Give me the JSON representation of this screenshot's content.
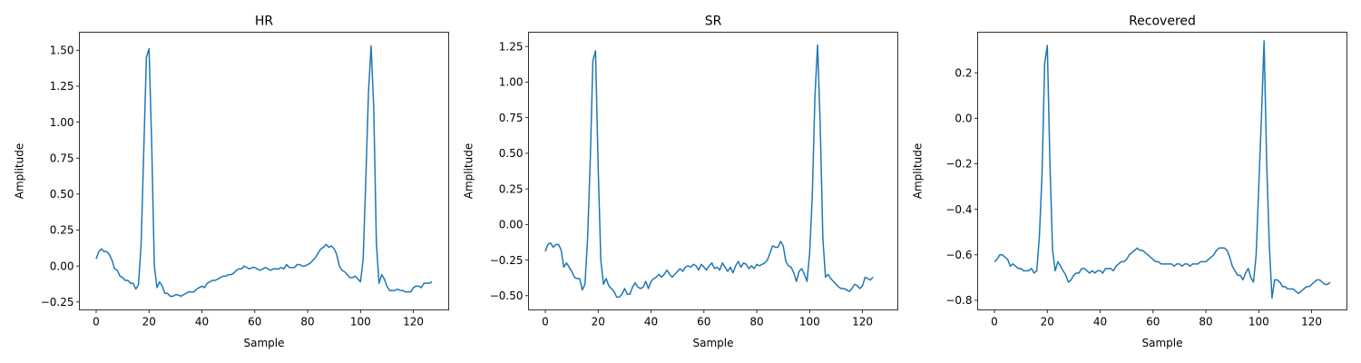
{
  "chart_data": [
    {
      "type": "line",
      "title": "HR",
      "xlabel": "Sample",
      "ylabel": "Amplitude",
      "xlim": [
        -6.35,
        133.35
      ],
      "ylim": [
        -0.305,
        1.625
      ],
      "xticks": [
        0,
        20,
        40,
        60,
        80,
        100,
        120
      ],
      "yticks": [
        -0.25,
        0.0,
        0.25,
        0.5,
        0.75,
        1.0,
        1.25,
        1.5
      ],
      "ytick_labels": [
        "−0.25",
        "0.00",
        "0.25",
        "0.50",
        "0.75",
        "1.00",
        "1.25",
        "1.50"
      ],
      "grid": false,
      "color": "#1f77b4",
      "series": [
        {
          "values": [
            0.05,
            0.1,
            0.12,
            0.1,
            0.1,
            0.08,
            0.04,
            -0.02,
            -0.03,
            -0.07,
            -0.08,
            -0.1,
            -0.1,
            -0.12,
            -0.12,
            -0.16,
            -0.13,
            0.15,
            0.8,
            1.45,
            1.51,
            0.85,
            0.0,
            -0.15,
            -0.11,
            -0.14,
            -0.19,
            -0.19,
            -0.21,
            -0.21,
            -0.2,
            -0.2,
            -0.21,
            -0.2,
            -0.19,
            -0.18,
            -0.18,
            -0.18,
            -0.16,
            -0.15,
            -0.14,
            -0.15,
            -0.12,
            -0.11,
            -0.1,
            -0.1,
            -0.09,
            -0.08,
            -0.07,
            -0.07,
            -0.06,
            -0.06,
            -0.05,
            -0.03,
            -0.02,
            -0.02,
            0.0,
            -0.01,
            -0.02,
            -0.01,
            -0.01,
            -0.02,
            -0.03,
            -0.02,
            -0.01,
            -0.02,
            -0.03,
            -0.02,
            -0.02,
            -0.02,
            -0.01,
            -0.02,
            0.01,
            -0.01,
            -0.01,
            -0.01,
            0.01,
            0.01,
            0.0,
            0.0,
            0.01,
            0.02,
            0.04,
            0.06,
            0.09,
            0.12,
            0.13,
            0.15,
            0.13,
            0.14,
            0.12,
            0.08,
            0.0,
            -0.03,
            -0.04,
            -0.06,
            -0.08,
            -0.08,
            -0.07,
            -0.09,
            -0.11,
            0.05,
            0.6,
            1.2,
            1.53,
            1.1,
            0.16,
            -0.12,
            -0.06,
            -0.09,
            -0.14,
            -0.17,
            -0.17,
            -0.17,
            -0.16,
            -0.17,
            -0.17,
            -0.18,
            -0.18,
            -0.18,
            -0.15,
            -0.14,
            -0.14,
            -0.15,
            -0.12,
            -0.12,
            -0.12,
            -0.11
          ]
        }
      ]
    },
    {
      "type": "line",
      "title": "SR",
      "xlabel": "Sample",
      "ylabel": "Amplitude",
      "xlim": [
        -6.35,
        133.35
      ],
      "ylim": [
        -0.6,
        1.35
      ],
      "xticks": [
        0,
        20,
        40,
        60,
        80,
        100,
        120
      ],
      "yticks": [
        -0.5,
        -0.25,
        0.0,
        0.25,
        0.5,
        0.75,
        1.0,
        1.25
      ],
      "ytick_labels": [
        "−0.50",
        "−0.25",
        "0.00",
        "0.25",
        "0.50",
        "0.75",
        "1.00",
        "1.25"
      ],
      "grid": false,
      "color": "#1f77b4",
      "series": [
        {
          "values": [
            -0.19,
            -0.14,
            -0.13,
            -0.16,
            -0.14,
            -0.14,
            -0.18,
            -0.3,
            -0.27,
            -0.3,
            -0.33,
            -0.37,
            -0.38,
            -0.38,
            -0.46,
            -0.42,
            -0.1,
            0.45,
            1.15,
            1.22,
            0.4,
            -0.25,
            -0.42,
            -0.38,
            -0.43,
            -0.45,
            -0.47,
            -0.51,
            -0.51,
            -0.49,
            -0.45,
            -0.49,
            -0.49,
            -0.44,
            -0.41,
            -0.44,
            -0.45,
            -0.44,
            -0.4,
            -0.45,
            -0.4,
            -0.38,
            -0.37,
            -0.35,
            -0.37,
            -0.35,
            -0.32,
            -0.35,
            -0.37,
            -0.35,
            -0.33,
            -0.31,
            -0.33,
            -0.3,
            -0.29,
            -0.3,
            -0.28,
            -0.29,
            -0.32,
            -0.28,
            -0.3,
            -0.32,
            -0.29,
            -0.27,
            -0.31,
            -0.3,
            -0.32,
            -0.27,
            -0.3,
            -0.33,
            -0.3,
            -0.34,
            -0.29,
            -0.26,
            -0.3,
            -0.27,
            -0.28,
            -0.31,
            -0.29,
            -0.31,
            -0.28,
            -0.29,
            -0.28,
            -0.27,
            -0.25,
            -0.2,
            -0.15,
            -0.16,
            -0.16,
            -0.12,
            -0.15,
            -0.26,
            -0.29,
            -0.3,
            -0.34,
            -0.4,
            -0.33,
            -0.31,
            -0.35,
            -0.4,
            -0.2,
            0.2,
            0.9,
            1.26,
            0.7,
            -0.1,
            -0.37,
            -0.35,
            -0.38,
            -0.4,
            -0.42,
            -0.44,
            -0.45,
            -0.45,
            -0.46,
            -0.47,
            -0.45,
            -0.42,
            -0.43,
            -0.45,
            -0.43,
            -0.37,
            -0.38,
            -0.39,
            -0.37
          ]
        }
      ]
    },
    {
      "type": "line",
      "title": "Recovered",
      "xlabel": "Sample",
      "ylabel": "Amplitude",
      "xlim": [
        -6.35,
        133.35
      ],
      "ylim": [
        -0.842,
        0.378
      ],
      "xticks": [
        0,
        20,
        40,
        60,
        80,
        100,
        120
      ],
      "yticks": [
        -0.8,
        -0.6,
        -0.4,
        -0.2,
        0.0,
        0.2
      ],
      "ytick_labels": [
        "−0.8",
        "−0.6",
        "−0.4",
        "−0.2",
        "0.0",
        "0.2"
      ],
      "grid": false,
      "color": "#1f77b4",
      "series": [
        {
          "values": [
            -0.63,
            -0.62,
            -0.6,
            -0.6,
            -0.61,
            -0.62,
            -0.65,
            -0.64,
            -0.65,
            -0.66,
            -0.66,
            -0.67,
            -0.67,
            -0.67,
            -0.66,
            -0.68,
            -0.67,
            -0.52,
            -0.25,
            0.24,
            0.32,
            -0.2,
            -0.58,
            -0.67,
            -0.63,
            -0.65,
            -0.67,
            -0.69,
            -0.72,
            -0.71,
            -0.69,
            -0.68,
            -0.68,
            -0.66,
            -0.66,
            -0.67,
            -0.68,
            -0.67,
            -0.68,
            -0.67,
            -0.67,
            -0.68,
            -0.66,
            -0.66,
            -0.66,
            -0.67,
            -0.65,
            -0.64,
            -0.63,
            -0.63,
            -0.62,
            -0.6,
            -0.59,
            -0.58,
            -0.57,
            -0.58,
            -0.58,
            -0.59,
            -0.6,
            -0.61,
            -0.62,
            -0.63,
            -0.63,
            -0.64,
            -0.64,
            -0.64,
            -0.64,
            -0.64,
            -0.65,
            -0.64,
            -0.64,
            -0.65,
            -0.64,
            -0.64,
            -0.65,
            -0.64,
            -0.64,
            -0.64,
            -0.63,
            -0.63,
            -0.63,
            -0.62,
            -0.61,
            -0.6,
            -0.58,
            -0.57,
            -0.57,
            -0.57,
            -0.58,
            -0.61,
            -0.65,
            -0.67,
            -0.69,
            -0.69,
            -0.71,
            -0.68,
            -0.66,
            -0.7,
            -0.72,
            -0.6,
            -0.3,
            0.0,
            0.34,
            -0.2,
            -0.56,
            -0.79,
            -0.71,
            -0.71,
            -0.72,
            -0.74,
            -0.74,
            -0.75,
            -0.75,
            -0.75,
            -0.76,
            -0.77,
            -0.76,
            -0.75,
            -0.74,
            -0.74,
            -0.73,
            -0.72,
            -0.71,
            -0.71,
            -0.72,
            -0.73,
            -0.73,
            -0.72
          ]
        }
      ]
    }
  ]
}
